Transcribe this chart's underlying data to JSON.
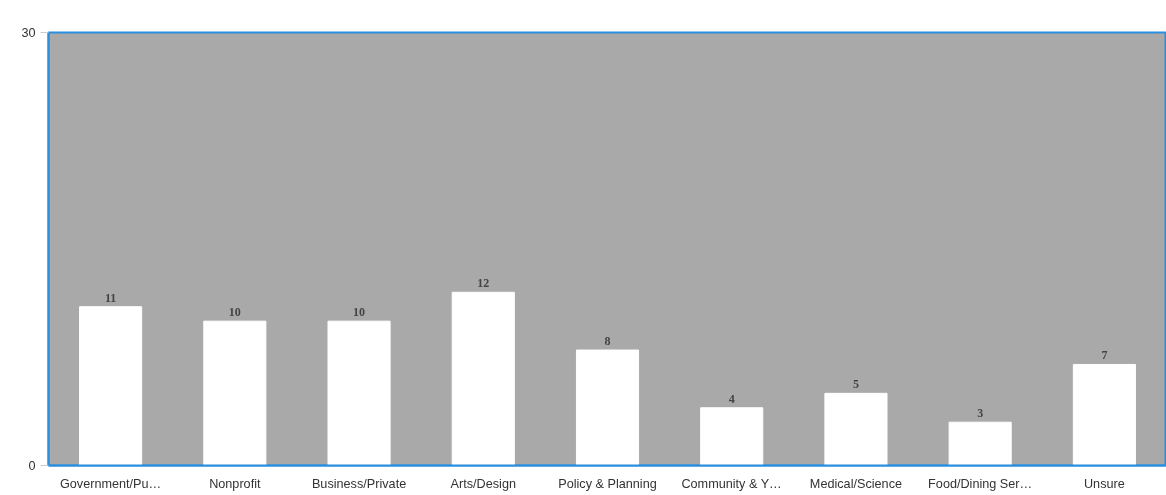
{
  "chart_data": {
    "type": "bar",
    "categories": [
      "Government/Pu…",
      "Nonprofit",
      "Business/Private",
      "Arts/Design",
      "Policy & Planning",
      "Community & Y…",
      "Medical/Science",
      "Food/Dining Ser…",
      "Unsure"
    ],
    "values": [
      11,
      10,
      10,
      12,
      8,
      4,
      5,
      3,
      7
    ],
    "color": "#ffffff",
    "ylim": [
      0,
      30
    ],
    "yticks": [
      0,
      30
    ],
    "grid": false,
    "data_labels": true
  }
}
